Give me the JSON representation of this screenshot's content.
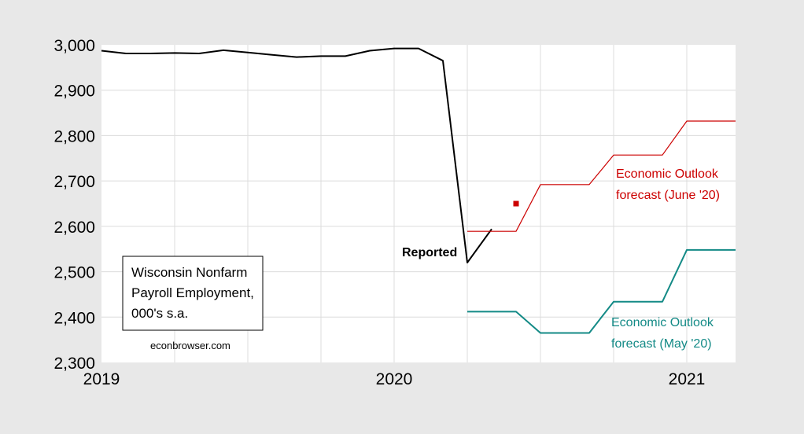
{
  "chart_data": {
    "type": "line",
    "ylim": [
      2300,
      3000
    ],
    "xlim": [
      "2019-01",
      "2021-03"
    ],
    "y_ticks": [
      "3,000",
      "2,900",
      "2,800",
      "2,700",
      "2,600",
      "2,500",
      "2,400",
      "2,300"
    ],
    "x_ticks": [
      "2019",
      "2020",
      "2021"
    ],
    "grid": true,
    "series": [
      {
        "name": "",
        "color": "#000000",
        "x": [
          "2019-01",
          "2019-02",
          "2019-03",
          "2019-04",
          "2019-05",
          "2019-06",
          "2019-07",
          "2019-08",
          "2019-09",
          "2019-10",
          "2019-11",
          "2019-12",
          "2020-01",
          "2020-02",
          "2020-03",
          "2020-04",
          "2020-05"
        ],
        "values": [
          2987,
          2981,
          2981,
          2982,
          2981,
          2988,
          2983,
          2978,
          2973,
          2975,
          2975,
          2987,
          2992,
          2992,
          2965,
          2520,
          2594
        ]
      },
      {
        "name": "",
        "color": "#cc0000",
        "step": true,
        "x": [
          "2020-04",
          "2020-05",
          "2020-06",
          "2020-07",
          "2020-08",
          "2020-09",
          "2020-10",
          "2020-11",
          "2020-12",
          "2021-01",
          "2021-02",
          "2021-03"
        ],
        "values": [
          2589,
          2589,
          2589,
          2692,
          2692,
          2692,
          2757,
          2757,
          2757,
          2832,
          2832,
          2832
        ]
      },
      {
        "name": "",
        "color": "#138a86",
        "step": true,
        "x": [
          "2020-04",
          "2020-05",
          "2020-06",
          "2020-07",
          "2020-08",
          "2020-09",
          "2020-10",
          "2020-11",
          "2020-12",
          "2021-01",
          "2021-02",
          "2021-03"
        ],
        "values": [
          2412,
          2412,
          2412,
          2365,
          2365,
          2365,
          2434,
          2434,
          2434,
          2548,
          2548,
          2548
        ]
      },
      {
        "name": "",
        "color": "#cc0000",
        "marker": "square",
        "x": [
          "2020-06"
        ],
        "values": [
          2650
        ]
      }
    ],
    "annotations": {
      "reported": "Reported",
      "june_line1": "Economic Outlook",
      "june_line2": "forecast (June '20)",
      "may_line1": "Economic Outlook",
      "may_line2": "forecast (May '20)"
    },
    "note": {
      "line1": "Wisconsin Nonfarm",
      "line2": "Payroll Employment,",
      "line3": "000's s.a."
    },
    "credit": "econbrowser.com"
  }
}
